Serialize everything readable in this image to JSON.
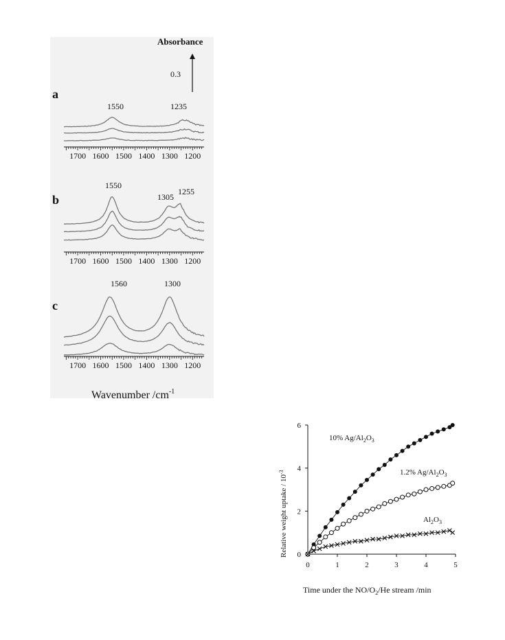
{
  "ir": {
    "absorbance_label": "Absorbance",
    "scale_label": "0.3",
    "x_label": "Wavenumber /cm",
    "x_label_sup": "-1",
    "x_ticks": [
      "1700",
      "1600",
      "1500",
      "1400",
      "1300",
      "1200"
    ],
    "panels": [
      {
        "letter": "a",
        "peaks": [
          "1550",
          "1235"
        ],
        "peak_positions_cm1": [
          1550,
          1235
        ],
        "trace_count": 3
      },
      {
        "letter": "b",
        "peaks": [
          "1550",
          "1305",
          "1255"
        ],
        "peak_positions_cm1": [
          1550,
          1305,
          1255
        ],
        "trace_count": 3
      },
      {
        "letter": "c",
        "peaks": [
          "1560",
          "1300"
        ],
        "peak_positions_cm1": [
          1560,
          1300
        ],
        "trace_count": 3
      }
    ],
    "colors": {
      "trace": "#777777",
      "panel_bg": "#f2f2f2"
    }
  },
  "chart_data": {
    "type": "scatter",
    "xlabel_parts": [
      "Time under the NO/O",
      "2",
      "/He stream   /min"
    ],
    "ylabel_parts": [
      "Relative weight uptake / 10",
      "-3"
    ],
    "xlim": [
      0,
      5
    ],
    "ylim": [
      0,
      6
    ],
    "x_ticks": [
      "0",
      "1",
      "2",
      "3",
      "4",
      "5"
    ],
    "y_ticks": [
      "0",
      "2",
      "4",
      "6"
    ],
    "series": [
      {
        "label_parts": [
          "10% Ag/Al",
          "2",
          "O",
          "3"
        ],
        "marker": "filled-circle",
        "x": [
          0,
          0.2,
          0.4,
          0.6,
          0.8,
          1.0,
          1.2,
          1.4,
          1.6,
          1.8,
          2.0,
          2.2,
          2.4,
          2.6,
          2.8,
          3.0,
          3.2,
          3.4,
          3.6,
          3.8,
          4.0,
          4.2,
          4.4,
          4.6,
          4.8,
          4.9
        ],
        "y": [
          0,
          0.45,
          0.85,
          1.25,
          1.6,
          1.95,
          2.3,
          2.6,
          2.9,
          3.2,
          3.45,
          3.7,
          3.95,
          4.15,
          4.4,
          4.6,
          4.8,
          5.0,
          5.15,
          5.3,
          5.45,
          5.6,
          5.7,
          5.8,
          5.9,
          6.0
        ]
      },
      {
        "label_parts": [
          "1.2% Ag/Al",
          "2",
          "O",
          "3"
        ],
        "marker": "open-circle",
        "x": [
          0,
          0.2,
          0.4,
          0.6,
          0.8,
          1.0,
          1.2,
          1.4,
          1.6,
          1.8,
          2.0,
          2.2,
          2.4,
          2.6,
          2.8,
          3.0,
          3.2,
          3.4,
          3.6,
          3.8,
          4.0,
          4.2,
          4.4,
          4.6,
          4.8,
          4.9
        ],
        "y": [
          0,
          0.3,
          0.55,
          0.8,
          1.0,
          1.2,
          1.4,
          1.55,
          1.7,
          1.85,
          2.0,
          2.1,
          2.2,
          2.35,
          2.45,
          2.55,
          2.65,
          2.75,
          2.8,
          2.9,
          3.0,
          3.05,
          3.1,
          3.15,
          3.2,
          3.3
        ]
      },
      {
        "label_parts": [
          "Al",
          "2",
          "O",
          "3"
        ],
        "marker": "cross",
        "x": [
          0,
          0.2,
          0.4,
          0.6,
          0.8,
          1.0,
          1.2,
          1.4,
          1.6,
          1.8,
          2.0,
          2.2,
          2.4,
          2.6,
          2.8,
          3.0,
          3.2,
          3.4,
          3.6,
          3.8,
          4.0,
          4.2,
          4.4,
          4.6,
          4.8,
          4.9
        ],
        "y": [
          0,
          0.15,
          0.25,
          0.35,
          0.4,
          0.45,
          0.5,
          0.55,
          0.6,
          0.6,
          0.65,
          0.7,
          0.7,
          0.75,
          0.8,
          0.85,
          0.85,
          0.9,
          0.9,
          0.95,
          0.95,
          1.0,
          1.0,
          1.05,
          1.1,
          1.0
        ]
      }
    ]
  }
}
